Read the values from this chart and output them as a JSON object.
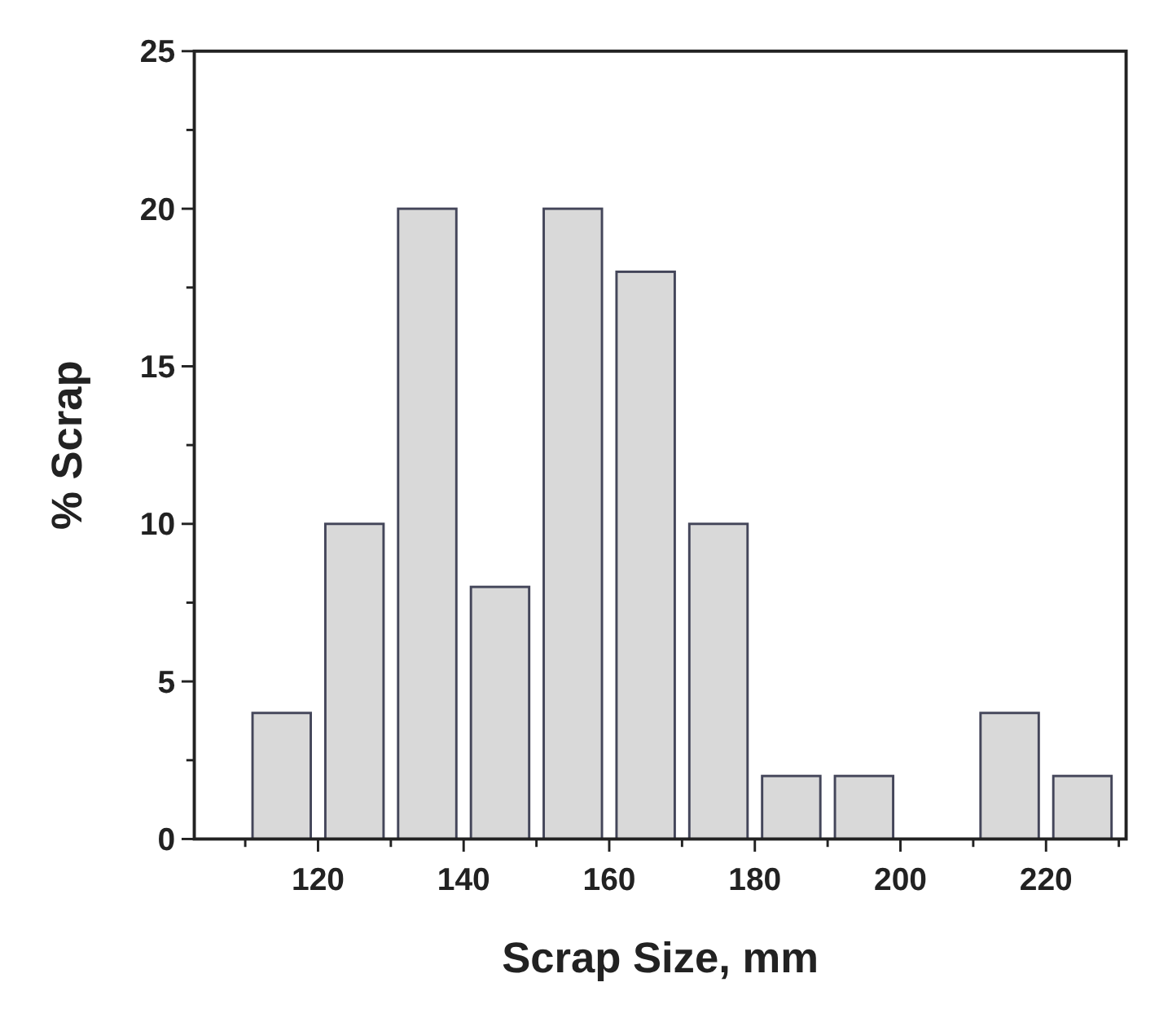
{
  "chart_data": {
    "type": "bar",
    "xlabel": "Scrap Size, mm",
    "ylabel": "% Scrap",
    "x": [
      115,
      125,
      135,
      145,
      155,
      165,
      175,
      185,
      195,
      205,
      215,
      225
    ],
    "values": [
      4,
      10,
      20,
      8,
      20,
      18,
      10,
      2,
      2,
      0,
      4,
      2
    ],
    "color": "#d9d9d9",
    "xlim": [
      103,
      231
    ],
    "xticks": [
      {
        "value": 110,
        "label": null
      },
      120,
      {
        "value": 130,
        "label": null
      },
      140,
      {
        "value": 150,
        "label": null
      },
      160,
      {
        "value": 170,
        "label": null
      },
      180,
      {
        "value": 190,
        "label": null
      },
      200,
      {
        "value": 210,
        "label": null
      },
      220,
      {
        "value": 230,
        "label": null
      }
    ],
    "ylim": [
      0,
      25
    ],
    "yticks": [
      0,
      {
        "value": 2.5,
        "label": null
      },
      5,
      {
        "value": 7.5,
        "label": null
      },
      10,
      {
        "value": 12.5,
        "label": null
      },
      15,
      {
        "value": 17.5,
        "label": null
      },
      20,
      {
        "value": 22.5,
        "label": null
      },
      25
    ],
    "grid": false
  }
}
